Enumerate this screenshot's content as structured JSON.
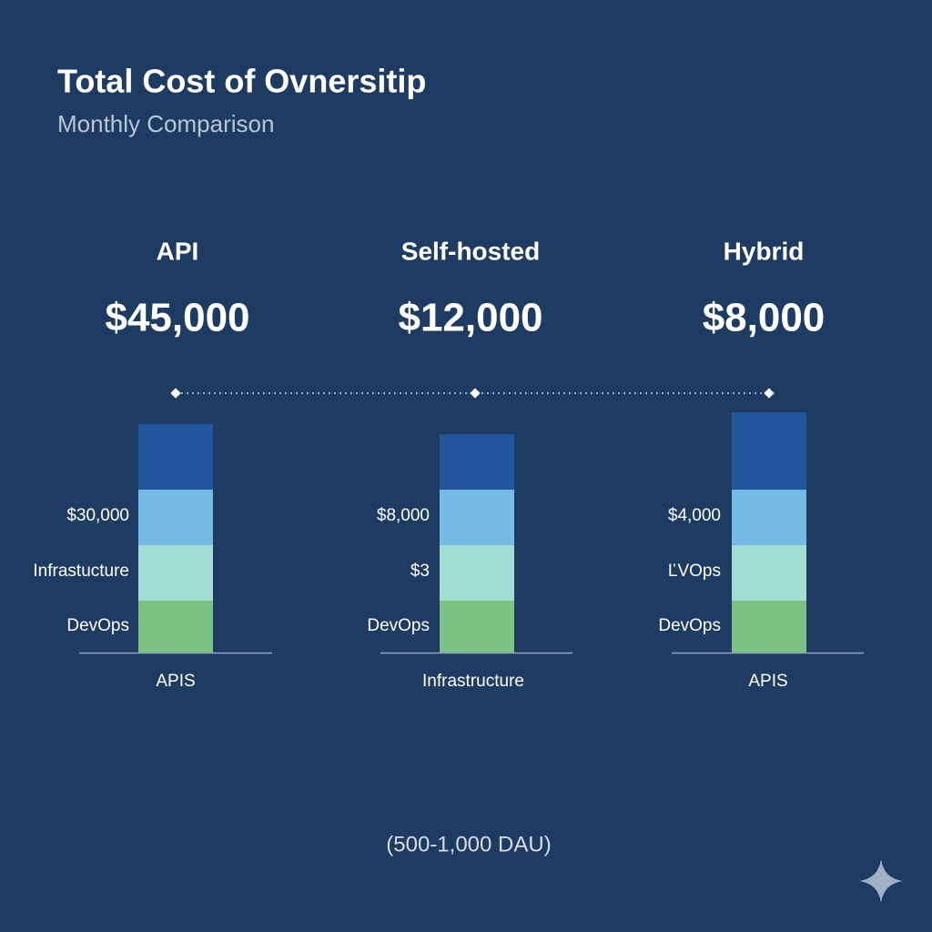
{
  "header": {
    "title": "Total Cost of Ovnersitip",
    "subtitle": "Monthly Comparison"
  },
  "columns": [
    {
      "name": "API",
      "total": "$45,000",
      "segment_labels": [
        "$30,000",
        "Infrastucture",
        "DevOps"
      ],
      "base_label": "APIS"
    },
    {
      "name": "Self-hosted",
      "total": "$12,000",
      "segment_labels": [
        "$8,000",
        "$3",
        "DevOps"
      ],
      "base_label": "Infrastructure"
    },
    {
      "name": "Hybrid",
      "total": "$8,000",
      "segment_labels": [
        "$4,000",
        "ĽVOps",
        "DevOps"
      ],
      "base_label": "APIS"
    }
  ],
  "footer": "(500-1,000 DAU)"
}
